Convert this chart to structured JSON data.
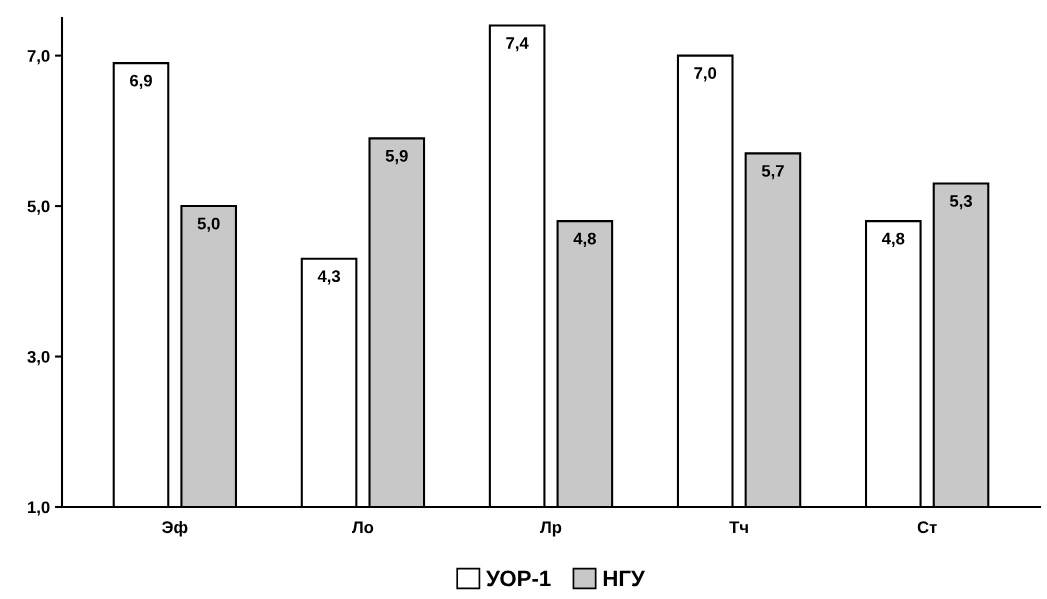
{
  "chart_data": {
    "type": "bar",
    "categories": [
      "Эф",
      "Ло",
      "Лр",
      "Тч",
      "Ст"
    ],
    "series": [
      {
        "name": "УОР-1",
        "color": "#ffffff",
        "values": [
          6.9,
          4.3,
          7.4,
          7.0,
          4.8
        ],
        "value_labels": [
          "6,9",
          "4,3",
          "7,4",
          "7,0",
          "4,8"
        ]
      },
      {
        "name": "НГУ",
        "color": "#c8c8c8",
        "values": [
          5.0,
          5.9,
          4.8,
          5.7,
          5.3
        ],
        "value_labels": [
          "5,0",
          "5,9",
          "4,8",
          "5,7",
          "5,3"
        ]
      }
    ],
    "ylim": [
      1,
      7.5
    ],
    "yticks": [
      {
        "value": 1,
        "label": "1,0"
      },
      {
        "value": 3,
        "label": "3,0"
      },
      {
        "value": 5,
        "label": "5,0"
      },
      {
        "value": 7,
        "label": "7,0"
      }
    ],
    "grid": false,
    "legend": "bottom"
  }
}
